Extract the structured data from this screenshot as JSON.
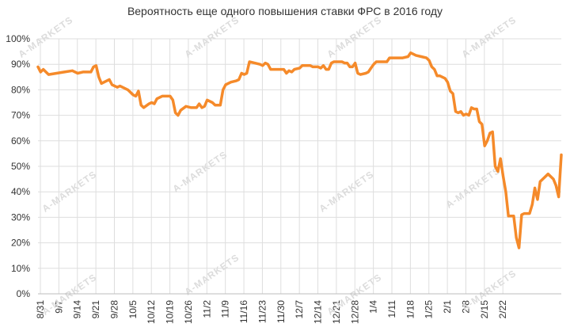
{
  "chart_data": {
    "type": "line",
    "title": "Вероятность еще одного повышения ставки ФРС в 2016 году",
    "xlabel": "",
    "ylabel": "",
    "ylim": [
      0,
      100
    ],
    "y_ticks": [
      "0%",
      "10%",
      "20%",
      "30%",
      "40%",
      "50%",
      "60%",
      "70%",
      "80%",
      "90%",
      "100%"
    ],
    "x_tick_labels": [
      "8/31",
      "9/7",
      "9/14",
      "9/21",
      "9/28",
      "10/5",
      "10/12",
      "10/19",
      "10/26",
      "11/2",
      "11/9",
      "11/16",
      "11/23",
      "11/30",
      "12/7",
      "12/14",
      "12/21",
      "12/28",
      "1/4",
      "1/11",
      "1/18",
      "1/25",
      "2/1",
      "2/8",
      "2/15",
      "2/22"
    ],
    "x_days_span": 183,
    "grid": true,
    "line_color": "#F58A2A",
    "watermark_text": "A-MARKETS",
    "series": [
      {
        "values": [
          [
            0,
            89
          ],
          [
            1,
            87
          ],
          [
            2,
            88
          ],
          [
            4,
            86
          ],
          [
            7,
            86.5
          ],
          [
            10,
            87
          ],
          [
            13,
            87.5
          ],
          [
            15,
            86.5
          ],
          [
            17,
            87
          ],
          [
            20,
            87
          ],
          [
            21,
            89
          ],
          [
            22,
            89.5
          ],
          [
            23,
            85
          ],
          [
            24,
            82.5
          ],
          [
            26,
            83.5
          ],
          [
            27,
            84
          ],
          [
            28,
            82
          ],
          [
            29,
            81.5
          ],
          [
            30,
            81
          ],
          [
            31,
            81.5
          ],
          [
            34,
            80
          ],
          [
            36,
            78
          ],
          [
            37,
            77.5
          ],
          [
            38,
            79.5
          ],
          [
            39,
            74
          ],
          [
            40,
            73
          ],
          [
            42,
            74.5
          ],
          [
            43,
            75
          ],
          [
            44,
            74.5
          ],
          [
            45,
            76.5
          ],
          [
            47,
            77.5
          ],
          [
            50,
            77.5
          ],
          [
            51,
            76
          ],
          [
            52,
            71
          ],
          [
            53,
            70
          ],
          [
            54,
            72
          ],
          [
            56,
            73.5
          ],
          [
            58,
            73
          ],
          [
            60,
            73
          ],
          [
            61,
            74.5
          ],
          [
            62,
            73
          ],
          [
            63,
            73.5
          ],
          [
            64,
            76
          ],
          [
            66,
            75
          ],
          [
            67,
            74
          ],
          [
            69,
            74
          ],
          [
            70,
            80
          ],
          [
            71,
            82
          ],
          [
            73,
            83
          ],
          [
            75,
            83.5
          ],
          [
            76,
            84
          ],
          [
            77,
            86.5
          ],
          [
            78,
            86
          ],
          [
            79,
            86.5
          ],
          [
            80,
            91
          ],
          [
            82,
            90.5
          ],
          [
            84,
            90
          ],
          [
            85,
            89.5
          ],
          [
            86,
            90.5
          ],
          [
            87,
            90
          ],
          [
            88,
            88
          ],
          [
            90,
            88
          ],
          [
            93,
            88
          ],
          [
            94,
            86.5
          ],
          [
            95,
            87.5
          ],
          [
            96,
            87
          ],
          [
            97,
            88
          ],
          [
            99,
            88.5
          ],
          [
            100,
            89.5
          ],
          [
            103,
            89.5
          ],
          [
            104,
            89
          ],
          [
            106,
            89
          ],
          [
            107,
            88.5
          ],
          [
            108,
            89.5
          ],
          [
            109,
            88
          ],
          [
            110,
            88
          ],
          [
            111,
            90.5
          ],
          [
            112,
            91
          ],
          [
            115,
            91
          ],
          [
            116,
            90.5
          ],
          [
            117,
            90.5
          ],
          [
            118,
            89
          ],
          [
            119,
            89
          ],
          [
            120,
            90.5
          ],
          [
            121,
            86.5
          ],
          [
            122,
            86
          ],
          [
            124,
            86.5
          ],
          [
            125,
            87
          ],
          [
            126,
            88.5
          ],
          [
            127,
            90
          ],
          [
            128,
            91
          ],
          [
            130,
            91
          ],
          [
            132,
            91
          ],
          [
            133,
            92.5
          ],
          [
            135,
            92.5
          ],
          [
            138,
            92.5
          ],
          [
            140,
            93
          ],
          [
            141,
            94.5
          ],
          [
            142,
            94
          ],
          [
            143,
            93.5
          ],
          [
            145,
            93
          ],
          [
            147,
            92.5
          ],
          [
            148,
            91.5
          ],
          [
            149,
            89
          ],
          [
            150,
            88
          ],
          [
            151,
            85.5
          ],
          [
            152,
            85.5
          ],
          [
            154,
            84.5
          ],
          [
            155,
            83
          ],
          [
            156,
            79.5
          ],
          [
            157,
            78.5
          ],
          [
            158,
            71.5
          ],
          [
            159,
            71
          ],
          [
            160,
            71.5
          ],
          [
            161,
            70
          ],
          [
            162,
            70.5
          ],
          [
            163,
            70
          ],
          [
            164,
            73
          ],
          [
            165,
            72.5
          ],
          [
            166,
            72.5
          ],
          [
            167,
            67.5
          ],
          [
            168,
            66.5
          ],
          [
            169,
            58
          ],
          [
            170,
            60
          ],
          [
            171,
            63
          ],
          [
            172,
            63.5
          ],
          [
            173,
            50
          ],
          [
            174,
            48
          ],
          [
            175,
            53
          ],
          [
            176,
            46
          ],
          [
            177,
            40
          ],
          [
            178,
            30.5
          ],
          [
            179,
            30.5
          ],
          [
            180,
            30.5
          ],
          [
            181,
            22
          ],
          [
            182,
            18
          ],
          [
            183,
            31
          ],
          [
            184,
            31.5
          ],
          [
            186,
            31.5
          ],
          [
            187,
            35
          ],
          [
            188,
            41.5
          ],
          [
            189,
            37
          ],
          [
            190,
            44
          ],
          [
            191,
            45
          ],
          [
            193,
            47
          ],
          [
            195,
            45
          ],
          [
            196,
            42.5
          ],
          [
            197,
            38
          ],
          [
            198,
            54.5
          ]
        ]
      }
    ]
  }
}
